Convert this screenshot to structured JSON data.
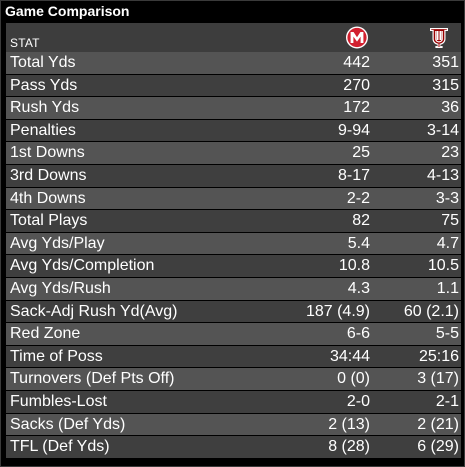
{
  "title": "Game Comparison",
  "header": {
    "stat_label": "STAT",
    "left_team_icon": "maryland-m-logo-icon",
    "right_team_icon": "indiana-iu-logo-icon"
  },
  "colors": {
    "row_light": "#545454",
    "row_dark": "#3f3f3f",
    "header_bg": "#3d3d3d",
    "team_red": "#d2202f",
    "iu_red": "#990000"
  },
  "rows": [
    {
      "stat": "Total Yds",
      "left": "442",
      "right": "351"
    },
    {
      "stat": "Pass Yds",
      "left": "270",
      "right": "315"
    },
    {
      "stat": "Rush Yds",
      "left": "172",
      "right": "36"
    },
    {
      "stat": "Penalties",
      "left": "9-94",
      "right": "3-14"
    },
    {
      "stat": "1st Downs",
      "left": "25",
      "right": "23"
    },
    {
      "stat": "3rd Downs",
      "left": "8-17",
      "right": "4-13"
    },
    {
      "stat": "4th Downs",
      "left": "2-2",
      "right": "3-3"
    },
    {
      "stat": "Total Plays",
      "left": "82",
      "right": "75"
    },
    {
      "stat": "Avg Yds/Play",
      "left": "5.4",
      "right": "4.7"
    },
    {
      "stat": "Avg Yds/Completion",
      "left": "10.8",
      "right": "10.5"
    },
    {
      "stat": "Avg Yds/Rush",
      "left": "4.3",
      "right": "1.1"
    },
    {
      "stat": "Sack-Adj Rush Yd(Avg)",
      "left": "187 (4.9)",
      "right": "60 (2.1)"
    },
    {
      "stat": "Red Zone",
      "left": "6-6",
      "right": "5-5"
    },
    {
      "stat": "Time of Poss",
      "left": "34:44",
      "right": "25:16"
    },
    {
      "stat": "Turnovers (Def Pts Off)",
      "left": "0 (0)",
      "right": "3 (17)"
    },
    {
      "stat": "Fumbles-Lost",
      "left": "2-0",
      "right": "2-1"
    },
    {
      "stat": "Sacks (Def Yds)",
      "left": "2 (13)",
      "right": "2 (21)"
    },
    {
      "stat": "TFL (Def Yds)",
      "left": "8 (28)",
      "right": "6 (29)"
    }
  ]
}
